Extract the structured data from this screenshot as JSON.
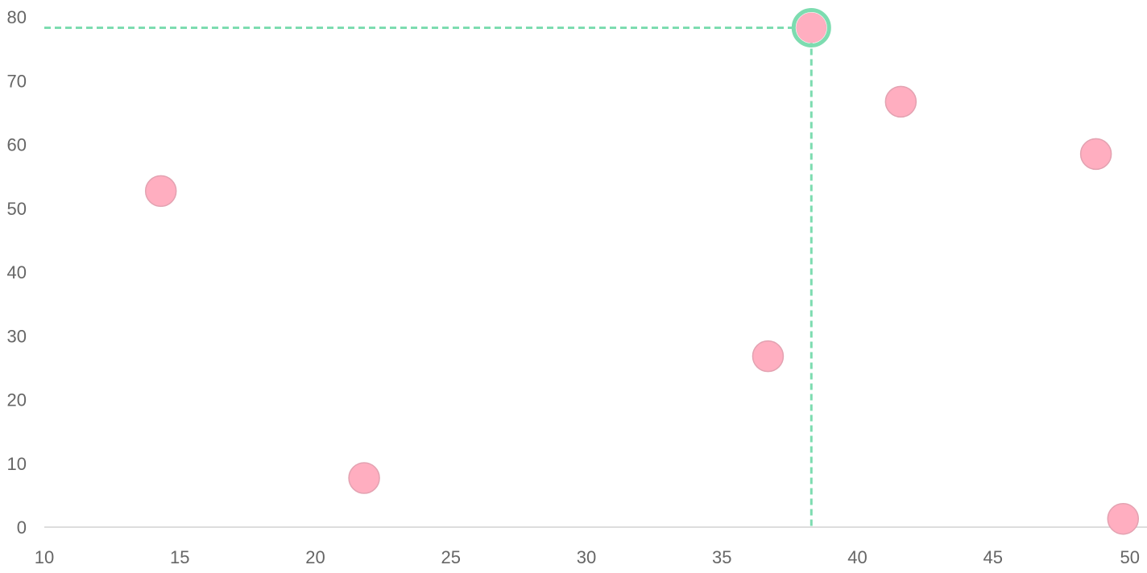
{
  "chart_data": {
    "type": "scatter",
    "title": "",
    "xlabel": "",
    "ylabel": "",
    "xlim": [
      10,
      50
    ],
    "ylim": [
      0,
      80
    ],
    "x_ticks": [
      10,
      15,
      20,
      25,
      30,
      35,
      40,
      45,
      50
    ],
    "y_ticks": [
      0,
      10,
      20,
      30,
      40,
      50,
      60,
      70,
      80
    ],
    "grid": false,
    "legend": "none",
    "series": [
      {
        "color": "#ffaec0",
        "points": [
          {
            "x": 14.3,
            "y": 52.7
          },
          {
            "x": 21.8,
            "y": 7.7
          },
          {
            "x": 36.7,
            "y": 26.8
          },
          {
            "x": 38.3,
            "y": 78.3
          },
          {
            "x": 41.6,
            "y": 66.7
          },
          {
            "x": 48.8,
            "y": 58.5
          },
          {
            "x": 49.8,
            "y": 1.3
          }
        ]
      }
    ],
    "highlight": {
      "point_index": 3,
      "x": 38.3,
      "y": 78.3,
      "color": "#7ddcb0",
      "crosshair": "dashed"
    },
    "axis_color": "#dddddd",
    "tick_label_color": "#666666"
  }
}
